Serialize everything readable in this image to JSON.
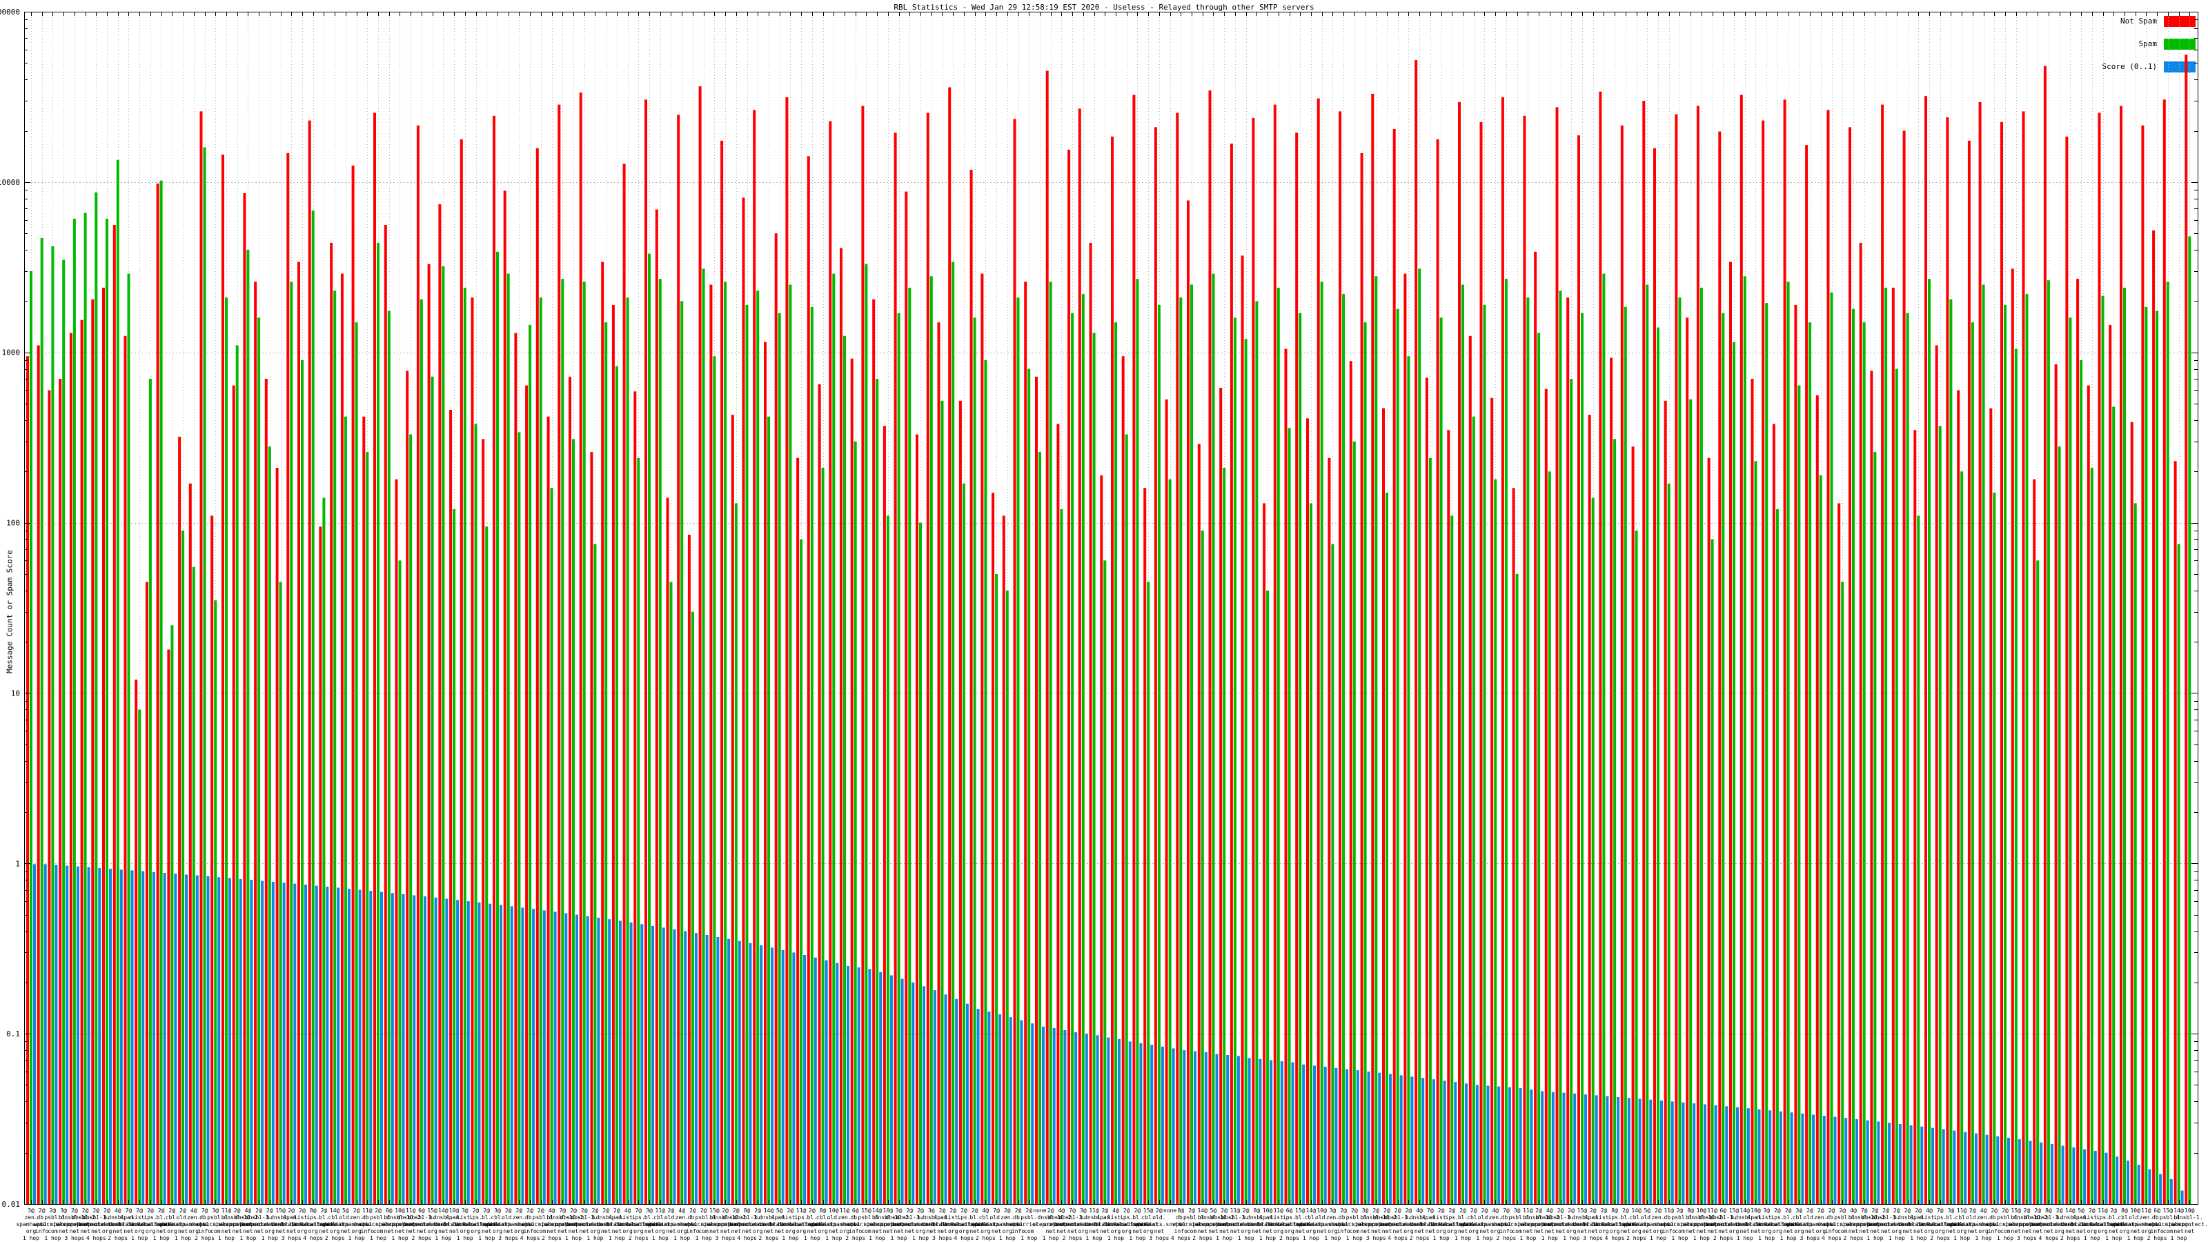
{
  "title": "RBL Statistics - Wed Jan 29 12:58:19 EST 2020 - Useless - Relayed through other SMTP servers",
  "y_axis": {
    "label": "Message Count or Spam Score",
    "ticks": [
      "100000",
      "10000",
      "1000",
      "100",
      "10",
      "1",
      "0.1",
      "0.01"
    ],
    "tick_values": [
      100000,
      10000,
      1000,
      100,
      10,
      1,
      0.1,
      0.01
    ]
  },
  "legend": [
    {
      "label": "Not Spam",
      "color": "#ff0000"
    },
    {
      "label": "Spam",
      "color": "#00bb00"
    },
    {
      "label": "Score (0..1)",
      "color": "#0d87e8"
    }
  ],
  "chart_data": {
    "type": "bar",
    "scale": "log",
    "ylim": [
      0.01,
      100000
    ],
    "grid": true,
    "legend_position": "top-right",
    "title": "RBL Statistics - Wed Jan 29 12:58:19 EST 2020 - Useless - Relayed through other SMTP servers",
    "ylabel": "Message Count or Spam Score",
    "categories": [
      "3@|zen.|spamhaus.|org|1 hop",
      "2@|db.|wpbl.|info|2 hops",
      "2@|psbl.|surriel.|com|1 hop",
      "3@|bl.|spamcop.|net|1 hop",
      "2@|dnsbl-1.|uceprotect.|net|3 hops",
      "2@|dnsbl-2.|uceprotect.|net|1 hop",
      "2@|dnsbl-3.|uceprotect.|net|4 hops",
      "2@|b.|barracudacentral.|org|1 hop",
      "4@|dnsbl.|sorbs.|net|2 hops",
      "7@|spam.|dnsbl.sorbs.|net|1 hop",
      "2@|list.|dnswl.|org|1 hop",
      "2@|ips.|backscatterer.|org|5 hops",
      "2@|bl.|mailspike.|net|1 hop",
      "2@|cbl.|abuseat.|org|2 hops",
      "2@|old.|spamlists.sorbs.|net|1 hop",
      "4@|zen.|spamhaus.|org|1 hop",
      "7@|db.|wpbl.|info|2 hops",
      "3@|psbl.|surriel.|com|4 hops",
      "11@|bl.|spamcop.|net|1 hop",
      "2@|dnsbl-1.|uceprotect.|net|1 hop",
      "4@|dnsbl-2.|uceprotect.|net|1 hop",
      "2@|dnsbl-3.|uceprotect.|net|2 hops",
      "2@|b.|barracudacentral.|org|1 hop",
      "15@|dnsbl.|sorbs.|net|1 hop",
      "2@|spam.|dnsbl.sorbs.|net|3 hops",
      "2@|list.|dnswl.|org|1 hop",
      "8@|ips.|backscatterer.|org|4 hops",
      "2@|bl.|mailspike.|net|1 hop",
      "14@|cbl.|abuseat.|org|2 hops",
      "5@|old.|spamlists.sorbs.|net|1 hop",
      "2@|zen.|spamhaus.|org|1 hop",
      "11@|db.|wpbl.|info|5 hops",
      "2@|psbl.|surriel.|com|1 hop",
      "8@|bl.|spamcop.|net|2 hops",
      "10@|dnsbl-1.|uceprotect.|net|1 hop",
      "11@|dnsbl-2.|uceprotect.|net|1 hop",
      "6@|dnsbl-3.|uceprotect.|net|2 hops",
      "15@|b.|barracudacentral.|org|4 hops",
      "14@|dnsbl.|sorbs.|net|1 hop",
      "10@|spam.|dnsbl.sorbs.|net|1 hop",
      "3@|list.|dnswl.|org|1 hop",
      "2@|ips.|backscatterer.|org|2 hops",
      "2@|bl.|mailspike.|net|1 hop",
      "3@|cbl.|abuseat.|org|1 hop",
      "2@|old.|spamlists.sorbs.|net|3 hops",
      "2@|zen.|spamhaus.|org|1 hop",
      "2@|db.|wpbl.|info|4 hops",
      "2@|psbl.|surriel.|com|1 hop",
      "4@|bl.|spamcop.|net|2 hops",
      "7@|dnsbl-1.|uceprotect.|net|1 hop",
      "2@|dnsbl-2.|uceprotect.|net|1 hop",
      "2@|dnsbl-3.|uceprotect.|net|5 hops",
      "2@|b.|barracudacentral.|org|1 hop",
      "2@|dnsbl.|sorbs.|net|2 hops",
      "2@|spam.|dnsbl.sorbs.|net|1 hop",
      "4@|list.|dnswl.|org|1 hop",
      "7@|ips.|backscatterer.|org|2 hops",
      "3@|bl.|mailspike.|net|4 hops",
      "11@|cbl.|abuseat.|org|1 hop",
      "2@|old.|spamlists.sorbs.|net|1 hop",
      "4@|zen.|spamhaus.|org|1 hop",
      "2@|db.|wpbl.|info|2 hops",
      "2@|psbl.|surriel.|com|1 hop",
      "15@|bl.|spamcop.|net|1 hop",
      "2@|dnsbl-1.|uceprotect.|net|3 hops",
      "2@|dnsbl-2.|uceprotect.|net|1 hop",
      "8@|dnsbl-3.|uceprotect.|net|4 hops",
      "2@|b.|barracudacentral.|org|1 hop",
      "14@|dnsbl.|sorbs.|net|2 hops",
      "5@|spam.|dnsbl.sorbs.|net|1 hop",
      "2@|list.|dnswl.|org|1 hop",
      "11@|ips.|backscatterer.|org|5 hops",
      "2@|bl.|mailspike.|net|1 hop",
      "8@|cbl.|abuseat.|org|2 hops",
      "10@|old.|spamlists.sorbs.|net|1 hop",
      "11@|zen.|spamhaus.|org|1 hop",
      "6@|db.|wpbl.|info|2 hops",
      "15@|psbl.|surriel.|com|4 hops",
      "14@|bl.|spamcop.|net|1 hop",
      "10@|dnsbl-1.|uceprotect.|net|1 hop",
      "3@|dnsbl-2.|uceprotect.|net|1 hop",
      "2@|dnsbl-3.|uceprotect.|net|2 hops",
      "2@|b.|barracudacentral.|org|1 hop",
      "3@|dnsbl.|sorbs.|net|1 hop",
      "2@|spam.|dnsbl.sorbs.|net|3 hops",
      "2@|list.|dnswl.|org|1 hop",
      "2@|ips.|backscatterer.|org|4 hops",
      "2@|bl.|mailspike.|net|1 hop",
      "4@|cbl.|abuseat.|org|2 hops",
      "7@|old.|spamlists.sorbs.|net|1 hop",
      "2@|zen.|spamhaus.|org|1 hop",
      "2@|db.|wpbl.|info|5 hops",
      "2@|psbl.|surriel.|com|1 hop",
      "none||||",
      "2@|dnsbl-1.|uceprotect.|net|1 hop",
      "4@|dnsbl-2.|uceprotect.|net|1 hop",
      "7@|dnsbl-3.|uceprotect.|net|2 hops",
      "3@|b.|barracudacentral.|org|4 hops",
      "11@|dnsbl.|sorbs.|net|1 hop",
      "2@|spam.|dnsbl.sorbs.|net|1 hop",
      "4@|list.|dnswl.|org|1 hop",
      "2@|ips.|backscatterer.|org|2 hops",
      "2@|bl.|mailspike.|net|1 hop",
      "15@|cbl.|abuseat.|org|1 hop",
      "2@|old.|spamlists.sorbs.|net|3 hops",
      "none||||",
      "8@|db.|wpbl.|info|4 hops",
      "2@|psbl.|surriel.|com|1 hop",
      "14@|bl.|spamcop.|net|2 hops",
      "5@|dnsbl-1.|uceprotect.|net|1 hop",
      "2@|dnsbl-2.|uceprotect.|net|1 hop",
      "11@|dnsbl-3.|uceprotect.|net|5 hops",
      "2@|b.|barracudacentral.|org|1 hop",
      "8@|dnsbl.|sorbs.|net|2 hops",
      "10@|spam.|dnsbl.sorbs.|net|1 hop",
      "11@|list.|dnswl.|org|1 hop",
      "6@|ips.|backscatterer.|org|2 hops",
      "15@|bl.|mailspike.|net|4 hops",
      "14@|cbl.|abuseat.|org|1 hop",
      "10@|old.|spamlists.sorbs.|net|1 hop",
      "3@|zen.|spamhaus.|org|1 hop",
      "2@|db.|wpbl.|info|2 hops",
      "2@|psbl.|surriel.|com|1 hop",
      "3@|bl.|spamcop.|net|1 hop",
      "2@|dnsbl-1.|uceprotect.|net|3 hops",
      "2@|dnsbl-2.|uceprotect.|net|1 hop",
      "2@|dnsbl-3.|uceprotect.|net|4 hops",
      "2@|b.|barracudacentral.|org|1 hop",
      "4@|dnsbl.|sorbs.|net|2 hops",
      "7@|spam.|dnsbl.sorbs.|net|1 hop",
      "2@|list.|dnswl.|org|1 hop",
      "2@|ips.|backscatterer.|org|5 hops",
      "2@|bl.|mailspike.|net|1 hop",
      "2@|cbl.|abuseat.|org|2 hops",
      "2@|old.|spamlists.sorbs.|net|1 hop",
      "4@|zen.|spamhaus.|org|1 hop",
      "7@|db.|wpbl.|info|2 hops",
      "3@|psbl.|surriel.|com|4 hops",
      "11@|bl.|spamcop.|net|1 hop",
      "2@|dnsbl-1.|uceprotect.|net|1 hop",
      "4@|dnsbl-2.|uceprotect.|net|1 hop",
      "2@|dnsbl-3.|uceprotect.|net|2 hops",
      "2@|b.|barracudacentral.|org|1 hop",
      "15@|dnsbl.|sorbs.|net|1 hop",
      "2@|spam.|dnsbl.sorbs.|net|3 hops",
      "2@|list.|dnswl.|org|1 hop",
      "8@|ips.|backscatterer.|org|4 hops",
      "2@|bl.|mailspike.|net|1 hop",
      "14@|cbl.|abuseat.|org|2 hops",
      "5@|old.|spamlists.sorbs.|net|1 hop",
      "2@|zen.|spamhaus.|org|1 hop",
      "11@|db.|wpbl.|info|5 hops",
      "2@|psbl.|surriel.|com|1 hop",
      "8@|bl.|spamcop.|net|2 hops",
      "10@|dnsbl-1.|uceprotect.|net|1 hop",
      "11@|dnsbl-2.|uceprotect.|net|1 hop",
      "6@|dnsbl-3.|uceprotect.|net|2 hops",
      "15@|b.|barracudacentral.|org|4 hops",
      "14@|dnsbl.|sorbs.|net|1 hop",
      "10@|spam.|dnsbl.sorbs.|net|1 hop",
      "3@|list.|dnswl.|org|1 hop",
      "2@|ips.|backscatterer.|org|2 hops",
      "2@|bl.|mailspike.|net|1 hop",
      "3@|cbl.|abuseat.|org|1 hop",
      "2@|old.|spamlists.sorbs.|net|3 hops",
      "2@|zen.|spamhaus.|org|1 hop",
      "2@|db.|wpbl.|info|4 hops",
      "2@|psbl.|surriel.|com|1 hop",
      "4@|bl.|spamcop.|net|2 hops",
      "7@|dnsbl-1.|uceprotect.|net|1 hop",
      "2@|dnsbl-2.|uceprotect.|net|1 hop",
      "2@|dnsbl-3.|uceprotect.|net|5 hops",
      "2@|b.|barracudacentral.|org|1 hop",
      "2@|dnsbl.|sorbs.|net|2 hops",
      "2@|spam.|dnsbl.sorbs.|net|1 hop",
      "4@|list.|dnswl.|org|1 hop",
      "7@|ips.|backscatterer.|org|2 hops",
      "3@|bl.|mailspike.|net|4 hops",
      "11@|cbl.|abuseat.|org|1 hop",
      "2@|old.|spamlists.sorbs.|net|1 hop",
      "4@|zen.|spamhaus.|org|1 hop",
      "2@|db.|wpbl.|info|2 hops",
      "2@|psbl.|surriel.|com|1 hop",
      "15@|bl.|spamcop.|net|1 hop",
      "2@|dnsbl-1.|uceprotect.|net|3 hops",
      "2@|dnsbl-2.|uceprotect.|net|1 hop",
      "8@|dnsbl-3.|uceprotect.|net|4 hops",
      "2@|b.|barracudacentral.|org|1 hop",
      "14@|dnsbl.|sorbs.|net|2 hops",
      "5@|spam.|dnsbl.sorbs.|net|1 hop",
      "2@|list.|dnswl.|org|1 hop",
      "11@|ips.|backscatterer.|org|5 hops",
      "2@|bl.|mailspike.|net|1 hop",
      "8@|cbl.|abuseat.|org|2 hops",
      "10@|old.|spamlists.sorbs.|net|1 hop",
      "11@|zen.|spamhaus.|org|1 hop",
      "6@|db.|wpbl.|info|2 hops",
      "15@|psbl.|surriel.|com|4 hops",
      "14@|bl.|spamcop.|net|1 hop",
      "10@|dnsbl-1.|uceprotect.|net|2 hops"
    ],
    "series": [
      {
        "name": "Not Spam",
        "color": "#ff0000",
        "values": [
          950,
          1100,
          600,
          700,
          1300,
          1550,
          2050,
          2400,
          5600,
          1250,
          12,
          45,
          9800,
          18,
          320,
          170,
          26000,
          110,
          14500,
          640,
          8600,
          2600,
          700,
          210,
          14800,
          3400,
          23000,
          95,
          4400,
          2900,
          12500,
          420,
          25500,
          5600,
          180,
          780,
          21500,
          3300,
          7400,
          460,
          17800,
          2100,
          310,
          24500,
          8900,
          1300,
          640,
          15800,
          420,
          28500,
          720,
          33500,
          260,
          3400,
          1900,
          12800,
          590,
          30500,
          6900,
          140,
          24800,
          85,
          36500,
          2500,
          17500,
          430,
          8100,
          26500,
          1150,
          5000,
          31500,
          240,
          14200,
          650,
          22800,
          4100,
          920,
          28000,
          2050,
          370,
          19500,
          8800,
          330,
          25500,
          1500,
          36000,
          520,
          11800,
          2900,
          150,
          110,
          23500,
          2600,
          720,
          45000,
          380,
          15500,
          27000,
          4400,
          190,
          18500,
          950,
          32500,
          160,
          21000,
          530,
          25500,
          7800,
          290,
          34500,
          620,
          16800,
          3700,
          23800,
          130,
          28500,
          1050,
          19500,
          410,
          31000,
          240,
          26000,
          890,
          14800,
          33000,
          470,
          20500,
          2900,
          52000,
          710,
          17800,
          350,
          29500,
          1250,
          22500,
          540,
          31500,
          160,
          24500,
          3900,
          610,
          27500,
          2100,
          18800,
          430,
          34000,
          930,
          21500,
          280,
          30000,
          15800,
          520,
          25000,
          1600,
          28000,
          240,
          19800,
          3400,
          32500,
          700,
          23000,
          380,
          30500,
          1900,
          16500,
          560,
          26500,
          130,
          21000,
          4400,
          780,
          28500,
          2400,
          20000,
          350,
          32000,
          1100,
          24000,
          600,
          17500,
          29500,
          470,
          22500,
          3100,
          26000,
          180,
          48000,
          850,
          18500,
          2700,
          640,
          25500,
          1450,
          28000,
          390,
          21500,
          5200,
          30500,
          230,
          56000
        ]
      },
      {
        "name": "Spam",
        "color": "#00bb00",
        "values": [
          3000,
          4700,
          4200,
          3500,
          6100,
          6600,
          8700,
          6100,
          13500,
          2900,
          8,
          700,
          10200,
          25,
          90,
          55,
          16000,
          35,
          2100,
          1100,
          4000,
          1600,
          280,
          45,
          2600,
          900,
          6800,
          140,
          2300,
          420,
          1500,
          260,
          4400,
          1750,
          60,
          330,
          2050,
          720,
          3200,
          120,
          2400,
          380,
          95,
          3900,
          2900,
          340,
          1450,
          2100,
          160,
          2700,
          310,
          2600,
          75,
          1500,
          830,
          2100,
          240,
          3800,
          2700,
          45,
          2000,
          30,
          3100,
          950,
          2600,
          130,
          1900,
          2300,
          420,
          1700,
          2500,
          80,
          1850,
          210,
          2900,
          1250,
          300,
          3300,
          700,
          110,
          1700,
          2400,
          100,
          2800,
          520,
          3400,
          170,
          1600,
          900,
          50,
          40,
          2100,
          800,
          260,
          2600,
          120,
          1700,
          2200,
          1300,
          60,
          1500,
          330,
          2700,
          45,
          1900,
          180,
          2100,
          2500,
          90,
          2900,
          210,
          1600,
          1200,
          2000,
          40,
          2400,
          360,
          1700,
          130,
          2600,
          75,
          2200,
          300,
          1500,
          2800,
          150,
          1800,
          950,
          3100,
          240,
          1600,
          110,
          2500,
          420,
          1900,
          180,
          2700,
          50,
          2100,
          1300,
          200,
          2300,
          700,
          1700,
          140,
          2900,
          310,
          1850,
          90,
          2500,
          1400,
          170,
          2100,
          530,
          2400,
          80,
          1700,
          1150,
          2800,
          230,
          1950,
          120,
          2600,
          640,
          1500,
          190,
          2250,
          45,
          1800,
          1500,
          260,
          2400,
          800,
          1700,
          110,
          2700,
          370,
          2050,
          200,
          1500,
          2500,
          150,
          1900,
          1050,
          2200,
          60,
          2650,
          280,
          1600,
          900,
          210,
          2150,
          480,
          2400,
          130,
          1850,
          1750,
          2600,
          75,
          4800
        ]
      },
      {
        "name": "Score (0..1)",
        "color": "#0d87e8",
        "values": [
          0.99,
          0.99,
          0.98,
          0.97,
          0.96,
          0.95,
          0.94,
          0.93,
          0.92,
          0.91,
          0.9,
          0.89,
          0.88,
          0.87,
          0.86,
          0.85,
          0.84,
          0.83,
          0.82,
          0.81,
          0.8,
          0.79,
          0.78,
          0.77,
          0.76,
          0.75,
          0.74,
          0.73,
          0.72,
          0.71,
          0.7,
          0.69,
          0.68,
          0.67,
          0.66,
          0.65,
          0.64,
          0.63,
          0.62,
          0.61,
          0.6,
          0.59,
          0.58,
          0.57,
          0.56,
          0.55,
          0.54,
          0.53,
          0.52,
          0.51,
          0.5,
          0.49,
          0.48,
          0.47,
          0.46,
          0.45,
          0.44,
          0.43,
          0.42,
          0.41,
          0.4,
          0.39,
          0.38,
          0.37,
          0.36,
          0.35,
          0.34,
          0.33,
          0.32,
          0.31,
          0.3,
          0.29,
          0.28,
          0.27,
          0.26,
          0.25,
          0.245,
          0.24,
          0.23,
          0.22,
          0.21,
          0.2,
          0.19,
          0.18,
          0.17,
          0.16,
          0.15,
          0.14,
          0.135,
          0.13,
          0.125,
          0.12,
          0.115,
          0.11,
          0.108,
          0.105,
          0.102,
          0.1,
          0.098,
          0.095,
          0.093,
          0.09,
          0.088,
          0.086,
          0.084,
          0.082,
          0.08,
          0.079,
          0.078,
          0.076,
          0.075,
          0.074,
          0.072,
          0.071,
          0.07,
          0.069,
          0.068,
          0.066,
          0.065,
          0.064,
          0.063,
          0.062,
          0.061,
          0.06,
          0.059,
          0.058,
          0.057,
          0.056,
          0.055,
          0.054,
          0.053,
          0.052,
          0.051,
          0.05,
          0.0495,
          0.049,
          0.0485,
          0.048,
          0.047,
          0.046,
          0.0455,
          0.045,
          0.0445,
          0.044,
          0.0435,
          0.043,
          0.0425,
          0.042,
          0.0415,
          0.041,
          0.0405,
          0.04,
          0.0395,
          0.039,
          0.0385,
          0.038,
          0.0375,
          0.037,
          0.0365,
          0.036,
          0.0355,
          0.035,
          0.0345,
          0.034,
          0.0335,
          0.033,
          0.0325,
          0.032,
          0.0315,
          0.031,
          0.0305,
          0.03,
          0.0295,
          0.029,
          0.0285,
          0.028,
          0.0275,
          0.027,
          0.0265,
          0.026,
          0.0255,
          0.025,
          0.0245,
          0.024,
          0.0235,
          0.023,
          0.0225,
          0.022,
          0.0215,
          0.021,
          0.0205,
          0.02,
          0.019,
          0.018,
          0.017,
          0.016,
          0.015,
          0.014,
          0.012,
          0.01
        ]
      }
    ]
  }
}
